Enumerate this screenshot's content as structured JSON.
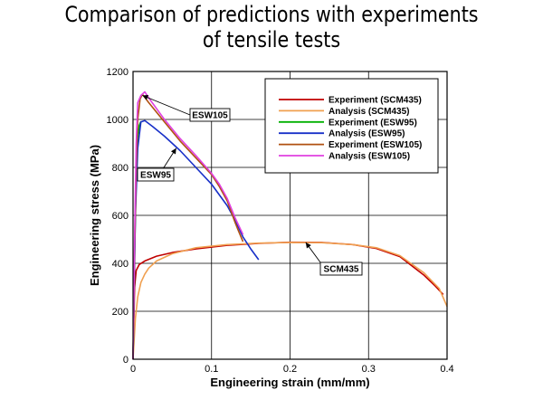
{
  "chart_data": {
    "type": "line",
    "title_lines": [
      "Comparison of predictions with experiments",
      "of tensile tests"
    ],
    "xlabel": "Engineering strain (mm/mm)",
    "ylabel": "Engineering stress (MPa)",
    "xlim": [
      0,
      0.4
    ],
    "ylim": [
      0,
      1200
    ],
    "x_ticks": [
      "0",
      "0.1",
      "0.2",
      "0.3",
      "0.4"
    ],
    "y_ticks": [
      "0",
      "200",
      "400",
      "600",
      "800",
      "1000",
      "1200"
    ],
    "grid": true,
    "legend_position": "top-right",
    "series": [
      {
        "name": "Experiment (SCM435)",
        "color": "#c00000",
        "x": [
          0,
          0.002,
          0.004,
          0.008,
          0.015,
          0.03,
          0.05,
          0.08,
          0.12,
          0.16,
          0.2,
          0.24,
          0.28,
          0.31,
          0.34,
          0.37,
          0.385,
          0.395
        ],
        "y": [
          0,
          300,
          370,
          395,
          410,
          430,
          445,
          460,
          475,
          483,
          488,
          487,
          478,
          462,
          428,
          352,
          305,
          270
        ]
      },
      {
        "name": "Analysis (SCM435)",
        "color": "#f0a050",
        "x": [
          0,
          0.003,
          0.006,
          0.01,
          0.015,
          0.02,
          0.03,
          0.05,
          0.08,
          0.12,
          0.16,
          0.2,
          0.24,
          0.28,
          0.31,
          0.34,
          0.37,
          0.39,
          0.4
        ],
        "y": [
          0,
          170,
          260,
          320,
          355,
          380,
          410,
          440,
          465,
          478,
          484,
          487,
          486,
          478,
          465,
          432,
          362,
          295,
          220
        ]
      },
      {
        "name": "Experiment (ESW95)",
        "color": "#00b000",
        "x": [
          0,
          0.002,
          0.004,
          0.006,
          0.008,
          0.01
        ],
        "y": [
          0,
          420,
          780,
          930,
          975,
          992
        ]
      },
      {
        "name": "Analysis (ESW95)",
        "color": "#1830c8",
        "x": [
          0,
          0.003,
          0.006,
          0.01,
          0.015,
          0.025,
          0.04,
          0.06,
          0.08,
          0.1,
          0.12,
          0.13,
          0.14,
          0.15,
          0.16
        ],
        "y": [
          0,
          600,
          880,
          990,
          995,
          970,
          930,
          870,
          800,
          730,
          640,
          580,
          510,
          460,
          415
        ]
      },
      {
        "name": "Experiment (ESW105)",
        "color": "#b05010",
        "x": [
          0,
          0.002,
          0.004,
          0.006,
          0.009,
          0.012,
          0.02,
          0.04,
          0.06,
          0.08,
          0.1,
          0.11,
          0.12,
          0.13,
          0.135,
          0.14
        ],
        "y": [
          0,
          450,
          800,
          1000,
          1085,
          1105,
          1070,
          990,
          910,
          840,
          770,
          720,
          660,
          570,
          530,
          490
        ]
      },
      {
        "name": "Analysis (ESW105)",
        "color": "#e040e0",
        "x": [
          0,
          0.002,
          0.004,
          0.006,
          0.01,
          0.015,
          0.02,
          0.04,
          0.06,
          0.08,
          0.1,
          0.11,
          0.12,
          0.13,
          0.14
        ],
        "y": [
          0,
          500,
          900,
          1070,
          1100,
          1115,
          1090,
          1000,
          920,
          850,
          775,
          730,
          670,
          590,
          520
        ]
      }
    ],
    "annotations": [
      {
        "text": "ESW105",
        "point_to": [
          0.012,
          1100
        ]
      },
      {
        "text": "ESW95",
        "point_to": [
          0.055,
          880
        ]
      },
      {
        "text": "SCM435",
        "point_to": [
          0.22,
          487
        ]
      }
    ]
  }
}
